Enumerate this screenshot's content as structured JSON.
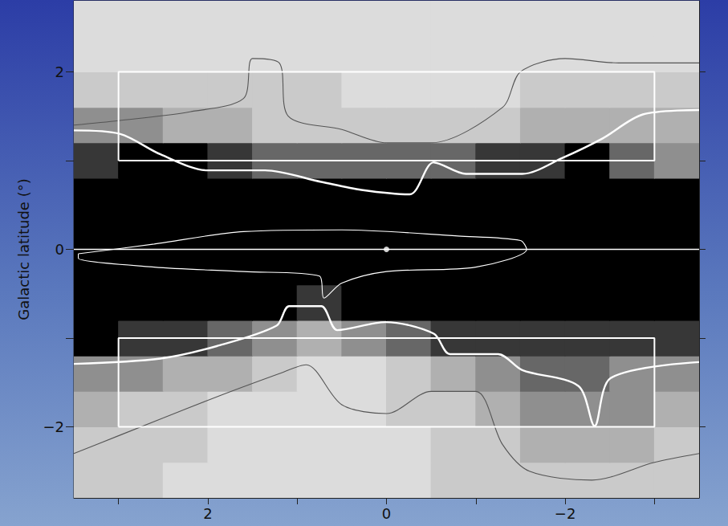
{
  "chart_data": {
    "type": "heatmap",
    "ylabel": "Galactic latitude (°)",
    "xlim": [
      3.5,
      -3.5
    ],
    "ylim": [
      -2.8,
      2.8
    ],
    "xticks": [
      2,
      0,
      {
        "value": -2,
        "label": "−2"
      }
    ],
    "xminor_ticks": [
      3,
      1,
      -1,
      -3
    ],
    "yticks": [
      {
        "value": -2,
        "label": "−2"
      },
      0,
      2
    ],
    "yminor_ticks": [
      -1,
      1
    ],
    "x": [
      3.25,
      2.75,
      2.25,
      1.75,
      1.25,
      0.75,
      0.25,
      -0.25,
      -0.75,
      -1.25,
      -1.75,
      -2.25,
      -2.75,
      -3.25
    ],
    "y": [
      -2.6,
      -2.2,
      -1.8,
      -1.4,
      -1.0,
      -0.6,
      -0.2,
      0.2,
      0.6,
      1.0,
      1.4,
      1.8,
      2.2,
      2.6
    ],
    "intensity": [
      [
        3,
        3,
        2,
        2,
        2,
        2,
        2,
        2,
        3,
        3,
        3,
        3,
        3,
        3
      ],
      [
        3,
        3,
        3,
        2,
        2,
        2,
        2,
        2,
        3,
        3,
        4,
        4,
        4,
        3
      ],
      [
        4,
        3,
        3,
        2,
        2,
        2,
        2,
        3,
        3,
        4,
        5,
        5,
        5,
        4
      ],
      [
        5,
        5,
        4,
        4,
        3,
        2,
        2,
        3,
        4,
        5,
        6,
        6,
        5,
        5
      ],
      [
        8,
        7,
        7,
        6,
        5,
        4,
        5,
        6,
        7,
        7,
        7,
        7,
        7,
        7
      ],
      [
        10,
        10,
        10,
        9,
        8,
        7,
        8,
        9,
        10,
        10,
        10,
        10,
        10,
        10
      ],
      [
        10,
        10,
        10,
        10,
        10,
        10,
        10,
        10,
        10,
        10,
        10,
        10,
        10,
        10
      ],
      [
        10,
        10,
        10,
        10,
        10,
        10,
        10,
        10,
        10,
        10,
        10,
        10,
        10,
        10
      ],
      [
        10,
        10,
        10,
        10,
        10,
        10,
        9,
        9,
        10,
        10,
        10,
        10,
        10,
        10
      ],
      [
        7,
        8,
        8,
        7,
        6,
        6,
        6,
        6,
        6,
        7,
        7,
        8,
        6,
        5
      ],
      [
        5,
        5,
        4,
        4,
        3,
        3,
        3,
        3,
        3,
        3,
        4,
        4,
        4,
        4
      ],
      [
        3,
        3,
        3,
        3,
        3,
        3,
        2,
        2,
        2,
        2,
        3,
        3,
        3,
        3
      ],
      [
        2,
        2,
        2,
        2,
        2,
        2,
        2,
        2,
        2,
        2,
        2,
        2,
        2,
        2
      ],
      [
        2,
        2,
        2,
        2,
        2,
        2,
        2,
        2,
        2,
        2,
        2,
        2,
        2,
        2
      ]
    ],
    "intensity_range": [
      0,
      8
    ],
    "contours": [
      {
        "color": "#555555",
        "line_style": "thin",
        "points": [
          [
            3.5,
            1.4
          ],
          [
            3.0,
            1.45
          ],
          [
            2.2,
            1.55
          ],
          [
            1.6,
            1.7
          ],
          [
            1.5,
            2.15
          ],
          [
            1.2,
            2.1
          ],
          [
            1.1,
            1.5
          ],
          [
            0.5,
            1.35
          ],
          [
            0.0,
            1.2
          ],
          [
            -0.5,
            1.2
          ],
          [
            -1.3,
            1.6
          ],
          [
            -1.5,
            2.0
          ],
          [
            -2.0,
            2.15
          ],
          [
            -2.6,
            2.1
          ],
          [
            -3.5,
            2.1
          ]
        ]
      },
      {
        "color": "#555555",
        "line_style": "thin",
        "points": [
          [
            3.5,
            -2.3
          ],
          [
            3.0,
            -2.1
          ],
          [
            2.0,
            -1.7
          ],
          [
            1.2,
            -1.4
          ],
          [
            0.9,
            -1.3
          ],
          [
            0.5,
            -1.75
          ],
          [
            0.0,
            -1.85
          ],
          [
            -0.5,
            -1.6
          ],
          [
            -1.0,
            -1.6
          ],
          [
            -1.3,
            -2.2
          ],
          [
            -1.6,
            -2.5
          ],
          [
            -2.3,
            -2.6
          ],
          [
            -3.0,
            -2.4
          ],
          [
            -3.5,
            -2.3
          ]
        ]
      },
      {
        "color": "#ffffff",
        "line_style": "thick",
        "points": [
          [
            3.5,
            1.34
          ],
          [
            2.98,
            1.3
          ],
          [
            2.53,
            1.07
          ],
          [
            2.0,
            0.89
          ],
          [
            1.36,
            0.89
          ],
          [
            0.73,
            0.76
          ],
          [
            0.28,
            0.67
          ],
          [
            -0.26,
            0.62
          ],
          [
            -0.53,
            0.98
          ],
          [
            -0.89,
            0.85
          ],
          [
            -1.52,
            0.85
          ],
          [
            -1.97,
            1.03
          ],
          [
            -2.42,
            1.25
          ],
          [
            -2.87,
            1.52
          ],
          [
            -3.5,
            1.57
          ]
        ]
      },
      {
        "color": "#ffffff",
        "line_style": "thick",
        "points": [
          [
            3.5,
            -1.29
          ],
          [
            2.53,
            -1.23
          ],
          [
            1.9,
            -1.09
          ],
          [
            1.23,
            -0.86
          ],
          [
            1.09,
            -0.64
          ],
          [
            0.73,
            -0.64
          ],
          [
            0.55,
            -0.91
          ],
          [
            0.01,
            -0.82
          ],
          [
            -0.53,
            -0.95
          ],
          [
            -0.71,
            -1.18
          ],
          [
            -1.25,
            -1.18
          ],
          [
            -1.52,
            -1.36
          ],
          [
            -2.15,
            -1.54
          ],
          [
            -2.33,
            -1.99
          ],
          [
            -2.51,
            -1.45
          ],
          [
            -3.5,
            -1.27
          ]
        ]
      },
      {
        "color": "#ffffff",
        "line_style": "thin",
        "points": [
          [
            3.45,
            -0.05
          ],
          [
            2.6,
            0.06
          ],
          [
            1.6,
            0.2
          ],
          [
            0.5,
            0.22
          ],
          [
            -0.8,
            0.15
          ],
          [
            -1.5,
            0.1
          ],
          [
            -1.57,
            0.0
          ],
          [
            -1.0,
            -0.2
          ],
          [
            0.0,
            -0.25
          ],
          [
            0.5,
            -0.38
          ],
          [
            0.7,
            -0.55
          ],
          [
            0.75,
            -0.3
          ],
          [
            1.6,
            -0.25
          ],
          [
            2.6,
            -0.2
          ],
          [
            3.45,
            -0.1
          ],
          [
            3.45,
            -0.05
          ]
        ]
      }
    ],
    "regions": [
      {
        "xlim": [
          3,
          -3
        ],
        "ylim": [
          1,
          2
        ],
        "color": "#ffffff"
      },
      {
        "xlim": [
          3,
          -3
        ],
        "ylim": [
          -2,
          -1
        ],
        "color": "#ffffff"
      }
    ],
    "reference_line": {
      "y": 0,
      "color": "#ffffff"
    },
    "markers": [
      {
        "x": 0,
        "y": 0,
        "color": "#ffffff"
      }
    ]
  }
}
